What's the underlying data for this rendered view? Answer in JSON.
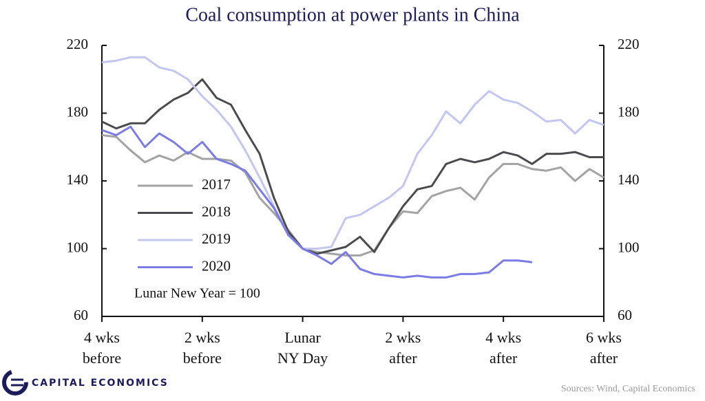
{
  "chart_data": {
    "type": "line",
    "title": "Coal consumption at power plants in China",
    "annotation": "Lunar New Year = 100",
    "source": "Sources: Wind, Capital Economics",
    "brand": "CAPITAL ECONOMICS",
    "x": [
      -28,
      -26,
      -24,
      -22,
      -20,
      -18,
      -16,
      -14,
      -12,
      -10,
      -8,
      -6,
      -4,
      -2,
      0,
      2,
      4,
      6,
      8,
      10,
      12,
      14,
      16,
      18,
      20,
      22,
      24,
      26,
      28,
      30,
      32,
      34,
      36,
      38,
      40,
      42
    ],
    "xlim": [
      -28,
      42
    ],
    "xticks": [
      {
        "value": -28,
        "label": "4 wks\nbefore"
      },
      {
        "value": -14,
        "label": "2 wks\nbefore"
      },
      {
        "value": 0,
        "label": "Lunar\nNY Day"
      },
      {
        "value": 14,
        "label": "2 wks\nafter"
      },
      {
        "value": 28,
        "label": "4 wks\nafter"
      },
      {
        "value": 42,
        "label": "6 wks\nafter"
      }
    ],
    "ylim": [
      60,
      220
    ],
    "yticks": [
      60,
      100,
      140,
      180,
      220
    ],
    "y2lim": [
      60,
      220
    ],
    "y2ticks": [
      60,
      100,
      140,
      180,
      220
    ],
    "series": [
      {
        "name": "2017",
        "color": "#a3a3a3",
        "values": [
          167,
          166,
          158,
          151,
          155,
          152,
          157,
          153,
          153,
          152,
          145,
          130,
          121,
          111,
          100,
          98,
          97,
          96,
          96,
          99,
          112,
          122,
          121,
          131,
          134,
          136,
          129,
          142,
          150,
          150,
          147,
          146,
          148,
          140,
          147,
          142
        ]
      },
      {
        "name": "2018",
        "color": "#4a4a4f",
        "values": [
          175,
          171,
          174,
          174,
          182,
          188,
          192,
          200,
          189,
          185,
          170,
          156,
          130,
          110,
          100,
          97,
          99,
          101,
          107,
          98,
          112,
          125,
          135,
          137,
          150,
          153,
          151,
          153,
          157,
          155,
          150,
          156,
          156,
          157,
          154,
          154
        ]
      },
      {
        "name": "2019",
        "color": "#c3c6f0",
        "values": [
          210,
          211,
          213,
          213,
          207,
          205,
          200,
          190,
          182,
          172,
          158,
          142,
          125,
          108,
          100,
          100,
          101,
          118,
          120,
          125,
          130,
          137,
          156,
          167,
          181,
          174,
          185,
          193,
          188,
          186,
          181,
          175,
          176,
          168,
          176,
          173
        ]
      },
      {
        "name": "2020",
        "color": "#7b7be6",
        "values": [
          170,
          167,
          172,
          160,
          168,
          163,
          156,
          163,
          153,
          150,
          146,
          135,
          124,
          108,
          100,
          96,
          91,
          98,
          88,
          85,
          84,
          83,
          84,
          83,
          83,
          85,
          85,
          86,
          93,
          93,
          92,
          null,
          null,
          null,
          null,
          null
        ]
      }
    ]
  }
}
